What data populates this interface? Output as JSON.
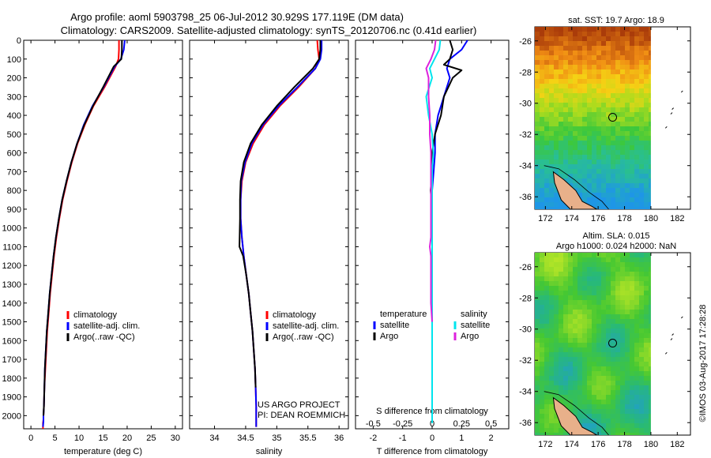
{
  "header": {
    "line1": "Argo profile: aoml 5903798_25 06-Jul-2012 30.929S 177.119E (DM data)",
    "line2": "Climatology: CARS2009. Satellite-adjusted climatology: synTS_20120706.nc (0.41d earlier)"
  },
  "side_text": "©IMOS 03-Aug-2017 17:28:28",
  "credit": {
    "line1": "US ARGO PROJECT",
    "line2": "PI: DEAN ROEMMICH"
  },
  "colors": {
    "climatology": "#ff0000",
    "satellite": "#0000ff",
    "argo": "#000000",
    "s_satellite": "#00e5ee",
    "s_argo": "#dd22dd",
    "marker": "#000000"
  },
  "chart_data": [
    {
      "type": "line",
      "id": "temperature-profile",
      "xlabel": "temperature (deg C)",
      "xlim": [
        -1.5,
        31.5
      ],
      "ylim": [
        2070,
        0
      ],
      "x_ticks": [
        0,
        5,
        10,
        15,
        20,
        25,
        30
      ],
      "y_ticks": [
        0,
        100,
        200,
        300,
        400,
        500,
        600,
        700,
        800,
        900,
        1000,
        1100,
        1200,
        1300,
        1400,
        1500,
        1600,
        1700,
        1800,
        1900,
        2000
      ],
      "legend": [
        "climatology",
        "satellite-adj. clim.",
        "Argo(..raw -QC)"
      ],
      "legend_location": "lower-center",
      "series": [
        {
          "name": "climatology",
          "x": [
            18.3,
            18.3,
            18.2,
            17.6,
            15.3,
            13.0,
            11.2,
            9.7,
            8.5,
            7.5,
            6.6,
            5.9,
            5.3,
            4.8,
            4.4,
            4.0,
            3.7,
            3.4,
            3.2,
            3.0,
            2.8,
            2.7,
            2.6,
            2.6,
            2.5,
            2.5,
            2.5
          ],
          "y": [
            0,
            50,
            100,
            140,
            250,
            350,
            450,
            550,
            650,
            750,
            850,
            950,
            1050,
            1150,
            1250,
            1350,
            1450,
            1550,
            1650,
            1750,
            1850,
            1950,
            2000,
            2020,
            2040,
            2060,
            2070
          ]
        },
        {
          "name": "satellite-adj. clim.",
          "x": [
            19.5,
            19.3,
            18.7,
            17.4,
            15.1,
            12.8,
            11.0,
            9.6,
            8.4,
            7.4,
            6.5,
            5.8,
            5.2,
            4.7,
            4.3,
            3.9,
            3.6,
            3.3,
            3.1,
            2.9,
            2.8,
            2.7,
            2.6,
            2.6,
            2.5
          ],
          "y": [
            0,
            50,
            100,
            140,
            250,
            350,
            450,
            550,
            650,
            750,
            850,
            950,
            1050,
            1150,
            1250,
            1350,
            1450,
            1550,
            1650,
            1750,
            1850,
            1950,
            2000,
            2030,
            2060
          ]
        },
        {
          "name": "Argo(..raw -QC)",
          "x": [
            18.9,
            18.9,
            18.8,
            17.2,
            15.0,
            12.9,
            11.1,
            9.6,
            8.4,
            7.4,
            6.5,
            5.8,
            5.2,
            4.7,
            4.3,
            3.9,
            3.6,
            3.3,
            3.1,
            2.9,
            2.8,
            2.7,
            2.6
          ],
          "y": [
            0,
            50,
            100,
            140,
            250,
            350,
            450,
            550,
            650,
            750,
            850,
            950,
            1050,
            1150,
            1250,
            1350,
            1450,
            1550,
            1650,
            1750,
            1850,
            1950,
            2000
          ]
        }
      ]
    },
    {
      "type": "line",
      "id": "salinity-profile",
      "xlabel": "salinity",
      "xlim": [
        33.6,
        36.15
      ],
      "ylim": [
        2070,
        0
      ],
      "x_ticks": [
        34,
        34.5,
        35,
        35.5,
        36
      ],
      "legend": [
        "climatology",
        "satellite-adj. clim.",
        "Argo(..raw -QC)"
      ],
      "legend_location": "lower-right",
      "series": [
        {
          "name": "climatology",
          "x": [
            35.65,
            35.66,
            35.68,
            35.62,
            35.35,
            35.05,
            34.8,
            34.62,
            34.5,
            34.44,
            34.42,
            34.42,
            34.44,
            34.47,
            34.51,
            34.55,
            34.58,
            34.61,
            34.63,
            34.65,
            34.66,
            34.67,
            34.67
          ],
          "y": [
            0,
            50,
            100,
            150,
            250,
            350,
            450,
            550,
            650,
            750,
            850,
            950,
            1050,
            1150,
            1250,
            1350,
            1450,
            1550,
            1650,
            1750,
            1850,
            1950,
            2060
          ]
        },
        {
          "name": "satellite-adj. clim.",
          "x": [
            35.72,
            35.72,
            35.7,
            35.62,
            35.33,
            35.03,
            34.78,
            34.6,
            34.49,
            34.43,
            34.42,
            34.42,
            34.44,
            34.47,
            34.51,
            34.55,
            34.58,
            34.61,
            34.63,
            34.65,
            34.66,
            34.67,
            34.67
          ],
          "y": [
            0,
            50,
            100,
            150,
            250,
            350,
            450,
            550,
            650,
            750,
            850,
            950,
            1050,
            1150,
            1250,
            1350,
            1450,
            1550,
            1650,
            1750,
            1850,
            1950,
            2060
          ]
        },
        {
          "name": "Argo(..raw -QC)",
          "x": [
            35.7,
            35.7,
            35.68,
            35.58,
            35.28,
            35.0,
            34.76,
            34.58,
            34.47,
            34.42,
            34.41,
            34.41,
            34.4,
            34.46,
            34.51,
            34.55,
            34.58,
            34.61,
            34.63,
            34.65,
            34.66
          ],
          "y": [
            0,
            50,
            100,
            150,
            250,
            350,
            450,
            550,
            650,
            750,
            850,
            950,
            1100,
            1150,
            1250,
            1350,
            1450,
            1550,
            1650,
            1750,
            1850
          ]
        }
      ]
    },
    {
      "type": "line",
      "id": "difference-profile",
      "xlabel": "T difference from climatology",
      "xlabel_top": "S difference from climatology",
      "xlim": [
        -2.6,
        2.6
      ],
      "ylim": [
        2070,
        0
      ],
      "x_ticks": [
        -2,
        -1,
        0,
        1,
        2
      ],
      "top_ticks": [
        -0.5,
        -0.25,
        0,
        0.25,
        0.5
      ],
      "legend": [
        "temperature",
        "satellite",
        "Argo",
        "salinity",
        "satellite",
        "Argo"
      ],
      "legend_location": "lower-center",
      "series": [
        {
          "name": "temperature satellite",
          "x": [
            1.2,
            1.0,
            0.6,
            0.5,
            0.6,
            0.4,
            0.2,
            0.1,
            0.1,
            0.05,
            0.0,
            0.0,
            0.0,
            0.0,
            0.0,
            0.0,
            0.0,
            0.0,
            0.0,
            0.0
          ],
          "y": [
            0,
            50,
            100,
            150,
            200,
            300,
            400,
            500,
            600,
            700,
            800,
            900,
            1000,
            1100,
            1200,
            1300,
            1400,
            1500,
            1600,
            1800
          ]
        },
        {
          "name": "temperature Argo",
          "x": [
            0.6,
            0.7,
            0.6,
            0.4,
            1.0,
            0.7,
            0.4,
            0.3,
            0.1,
            0.0,
            0.0,
            -0.05,
            0.0,
            0.0,
            0.0,
            0.0,
            0.0,
            0.0,
            0.0,
            0.0,
            0.0
          ],
          "y": [
            0,
            50,
            100,
            130,
            160,
            200,
            300,
            400,
            500,
            600,
            700,
            800,
            900,
            1000,
            1100,
            1200,
            1300,
            1400,
            1500,
            1700,
            1900
          ]
        },
        {
          "name": "salinity satellite",
          "x": [
            0.07,
            0.06,
            0.02,
            -0.02,
            0.0,
            -0.05,
            -0.03,
            0.0,
            0.01,
            0.0,
            0.0,
            0.0,
            0.0,
            0.0,
            0.0,
            0.0,
            0.0,
            0.0,
            0.0,
            0.0,
            0.0
          ],
          "y": [
            0,
            50,
            100,
            150,
            200,
            300,
            400,
            500,
            600,
            700,
            800,
            900,
            1000,
            1100,
            1200,
            1300,
            1400,
            1500,
            1600,
            1800,
            2040
          ]
        },
        {
          "name": "salinity Argo",
          "x": [
            0.03,
            0.02,
            -0.01,
            -0.05,
            -0.03,
            -0.03,
            -0.02,
            -0.02,
            -0.01,
            -0.01,
            -0.01,
            -0.01,
            -0.01,
            -0.01,
            -0.02,
            -0.01,
            -0.01,
            -0.01,
            -0.01,
            0.0
          ],
          "y": [
            0,
            50,
            100,
            150,
            200,
            300,
            400,
            500,
            600,
            700,
            800,
            900,
            1000,
            1050,
            1100,
            1150,
            1200,
            1300,
            1400,
            1500
          ]
        }
      ]
    },
    {
      "type": "heatmap",
      "id": "sst-map",
      "title": "sat. SST: 19.7 Argo: 18.9",
      "xlim": [
        171.2,
        183
      ],
      "ylim": [
        -36.8,
        -25.1
      ],
      "x_ticks": [
        172,
        174,
        176,
        178,
        180,
        182
      ],
      "y_ticks": [
        -26,
        -28,
        -30,
        -32,
        -34,
        -36
      ],
      "marker": {
        "lon": 177.1,
        "lat": -30.9
      }
    },
    {
      "type": "heatmap",
      "id": "sla-map",
      "title": "Altim. SLA: 0.015",
      "subtitle": "Argo h1000: 0.024 h2000: NaN",
      "xlim": [
        171.2,
        183
      ],
      "ylim": [
        -36.8,
        -25.1
      ],
      "x_ticks": [
        172,
        174,
        176,
        178,
        180,
        182
      ],
      "y_ticks": [
        -26,
        -28,
        -30,
        -32,
        -34,
        -36
      ],
      "marker": {
        "lon": 177.1,
        "lat": -30.9
      }
    }
  ]
}
